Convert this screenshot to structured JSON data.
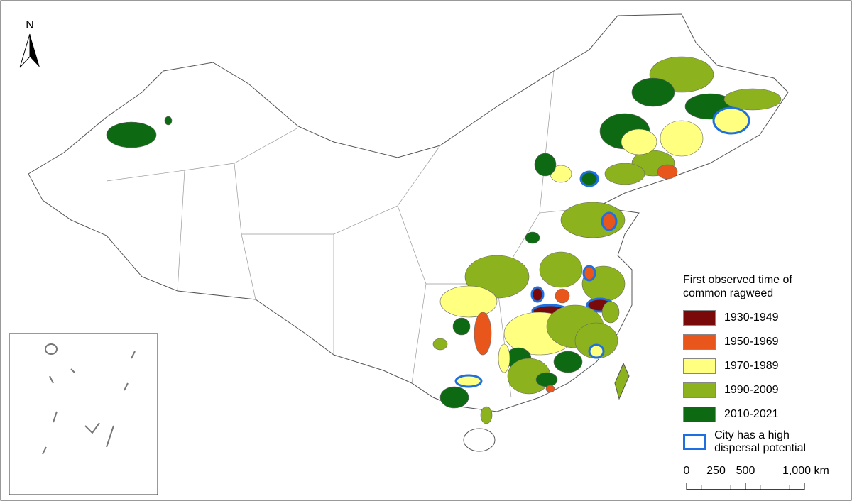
{
  "north_arrow": "N",
  "legend": {
    "title": "First observed time of common ragweed",
    "items": [
      {
        "label": "1930-1949",
        "color": "#7a0a0a"
      },
      {
        "label": "1950-1969",
        "color": "#e8561c"
      },
      {
        "label": "1970-1989",
        "color": "#ffff80"
      },
      {
        "label": "1990-2009",
        "color": "#8cb31e"
      },
      {
        "label": "2010-2021",
        "color": "#0e6a12"
      }
    ],
    "outline_item": {
      "label": "City has a high dispersal potential",
      "color": "#1f6fe0"
    }
  },
  "scale_bar": {
    "labels": [
      "0",
      "250",
      "500",
      "1,000 km"
    ]
  }
}
